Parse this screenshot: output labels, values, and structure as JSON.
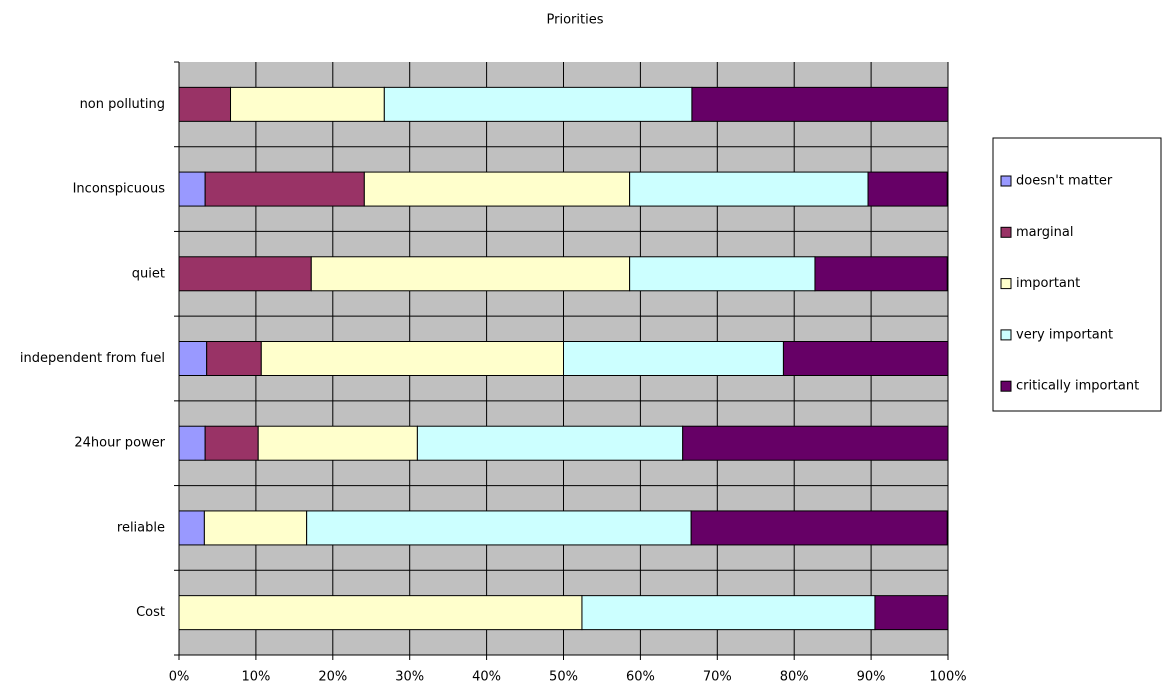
{
  "chart_data": {
    "type": "stacked_barh",
    "title": "Priorities",
    "categories": [
      "Cost",
      "reliable",
      "24hour power",
      "independent from fuel",
      "quiet",
      "Inconspicuous",
      "non polluting"
    ],
    "series": [
      {
        "name": "doesn't matter",
        "color": "#9999ff",
        "values": [
          0,
          3.3,
          3.4,
          3.6,
          0,
          3.4,
          0
        ]
      },
      {
        "name": "marginal",
        "color": "#993366",
        "values": [
          0,
          0,
          6.9,
          7.1,
          17.2,
          20.7,
          6.7
        ]
      },
      {
        "name": "important",
        "color": "#ffffcc",
        "values": [
          52.4,
          13.3,
          20.7,
          39.3,
          41.4,
          34.5,
          20
        ]
      },
      {
        "name": "very important",
        "color": "#ccffff",
        "values": [
          38.1,
          50,
          34.5,
          28.6,
          24.1,
          31.0,
          40
        ]
      },
      {
        "name": "critically important",
        "color": "#660066",
        "values": [
          9.5,
          33.3,
          34.5,
          21.4,
          17.2,
          10.3,
          33.3
        ]
      }
    ],
    "xlim": [
      0,
      100
    ],
    "xticks": [
      {
        "value": 0,
        "label": "0%"
      },
      {
        "value": 10,
        "label": "10%"
      },
      {
        "value": 20,
        "label": "20%"
      },
      {
        "value": 30,
        "label": "30%"
      },
      {
        "value": 40,
        "label": "40%"
      },
      {
        "value": 50,
        "label": "50%"
      },
      {
        "value": 60,
        "label": "60%"
      },
      {
        "value": 70,
        "label": "70%"
      },
      {
        "value": 80,
        "label": "80%"
      },
      {
        "value": 90,
        "label": "90%"
      },
      {
        "value": 100,
        "label": "100%"
      }
    ],
    "grid": true,
    "legend": "right"
  }
}
